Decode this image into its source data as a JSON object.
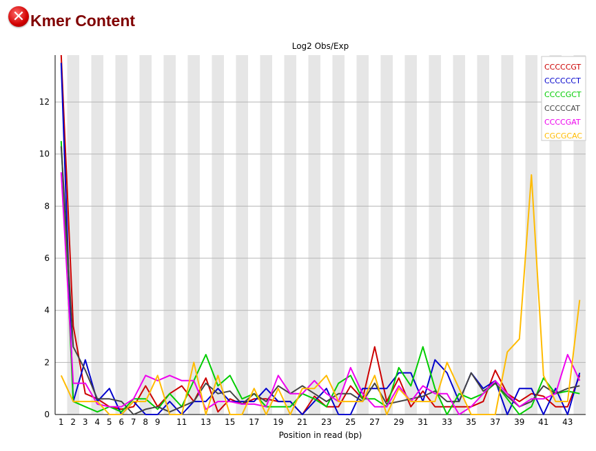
{
  "header": {
    "icon": "error-cross-icon",
    "title": "Kmer Content"
  },
  "chart_data": {
    "type": "line",
    "title": "Log2 Obs/Exp",
    "xlabel": "Position in read (bp)",
    "ylabel": "",
    "ylim": [
      0,
      13.8
    ],
    "yticks": [
      0,
      2,
      4,
      6,
      8,
      10,
      12
    ],
    "x": [
      1,
      2,
      3,
      4,
      5,
      6,
      7,
      8,
      9,
      10,
      11,
      12,
      13,
      14,
      15,
      16,
      17,
      18,
      19,
      20,
      21,
      22,
      23,
      24,
      25,
      26,
      27,
      28,
      29,
      30,
      31,
      32,
      33,
      34,
      35,
      36,
      37,
      38,
      39,
      40,
      41,
      42,
      43,
      44
    ],
    "xtick_labels": [
      "1",
      "2",
      "3",
      "4",
      "5",
      "6",
      "7",
      "8",
      "9",
      "11",
      "13",
      "15",
      "17",
      "19",
      "21",
      "23",
      "25",
      "27",
      "29",
      "31",
      "33",
      "35",
      "37",
      "39",
      "41",
      "43"
    ],
    "grid": true,
    "legend_position": "top-right",
    "series": [
      {
        "name": "CCCCCGT",
        "color": "#cc0000",
        "values": [
          13.8,
          3.4,
          0.8,
          0.6,
          0.3,
          0.2,
          0.3,
          1.1,
          0.3,
          0.8,
          1.1,
          0.5,
          1.4,
          0.1,
          0.6,
          0.4,
          0.6,
          0.6,
          0.5,
          0.5,
          0.0,
          0.7,
          0.3,
          0.3,
          1.1,
          0.6,
          2.6,
          0.5,
          1.4,
          0.3,
          0.9,
          0.3,
          0.3,
          0.3,
          0.3,
          0.5,
          1.7,
          0.8,
          0.5,
          0.8,
          0.7,
          0.3,
          0.3,
          1.5
        ]
      },
      {
        "name": "CCCCCCT",
        "color": "#0000cc",
        "values": [
          13.5,
          0.5,
          2.1,
          0.5,
          1.0,
          0.0,
          0.5,
          0.0,
          0.0,
          0.5,
          0.0,
          0.5,
          0.5,
          1.0,
          0.5,
          0.5,
          0.5,
          1.0,
          0.5,
          0.5,
          0.0,
          0.5,
          1.0,
          0.0,
          0.0,
          1.0,
          1.0,
          1.0,
          1.6,
          1.6,
          0.5,
          2.1,
          1.6,
          0.5,
          1.6,
          1.0,
          1.3,
          0.0,
          1.0,
          1.0,
          0.0,
          1.0,
          0.0,
          1.6
        ]
      },
      {
        "name": "CCCCGCT",
        "color": "#00cc00",
        "values": [
          10.5,
          0.5,
          0.3,
          0.1,
          0.3,
          0.1,
          0.6,
          0.6,
          0.2,
          0.8,
          0.3,
          1.3,
          2.3,
          1.1,
          1.5,
          0.6,
          0.8,
          0.3,
          0.3,
          0.3,
          0.8,
          0.6,
          0.3,
          1.2,
          1.5,
          0.6,
          0.6,
          0.3,
          1.8,
          1.1,
          2.6,
          1.0,
          0.0,
          0.8,
          0.6,
          0.8,
          1.2,
          0.6,
          0.0,
          0.3,
          1.4,
          0.8,
          0.9,
          0.8
        ]
      },
      {
        "name": "CCCCCAT",
        "color": "#444444",
        "values": [
          10.3,
          2.6,
          1.7,
          0.6,
          0.6,
          0.5,
          0.0,
          0.2,
          0.3,
          0.1,
          0.3,
          0.5,
          1.2,
          0.8,
          0.9,
          0.4,
          0.8,
          0.5,
          1.1,
          0.8,
          1.1,
          0.8,
          0.5,
          0.8,
          0.8,
          0.5,
          1.2,
          0.4,
          0.5,
          0.6,
          0.7,
          0.9,
          0.5,
          0.5,
          1.6,
          0.9,
          1.2,
          0.7,
          0.3,
          0.5,
          1.1,
          0.8,
          1.0,
          1.1
        ]
      },
      {
        "name": "CCCCGAT",
        "color": "#ee00ee",
        "values": [
          9.3,
          1.2,
          1.2,
          0.4,
          0.3,
          0.3,
          0.6,
          1.5,
          1.3,
          1.5,
          1.3,
          1.3,
          0.2,
          0.5,
          0.5,
          0.4,
          0.4,
          0.3,
          1.5,
          0.8,
          0.8,
          1.3,
          0.8,
          0.5,
          1.8,
          0.8,
          0.3,
          0.3,
          1.1,
          0.5,
          1.1,
          0.8,
          0.8,
          0.0,
          0.3,
          0.8,
          1.3,
          0.8,
          0.3,
          0.6,
          0.6,
          0.8,
          2.3,
          1.3
        ]
      },
      {
        "name": "CGCGCAC",
        "color": "#ffbb00",
        "values": [
          1.5,
          0.5,
          0.5,
          0.5,
          0.0,
          0.0,
          0.5,
          0.5,
          1.5,
          0.0,
          0.0,
          2.0,
          0.0,
          1.5,
          0.0,
          0.0,
          1.0,
          0.0,
          1.0,
          0.0,
          1.0,
          1.0,
          1.5,
          0.5,
          0.5,
          0.5,
          1.5,
          0.0,
          1.0,
          0.5,
          0.5,
          0.5,
          2.0,
          1.0,
          0.0,
          0.0,
          0.0,
          2.4,
          2.9,
          9.2,
          1.5,
          0.5,
          0.5,
          4.4
        ]
      }
    ]
  }
}
